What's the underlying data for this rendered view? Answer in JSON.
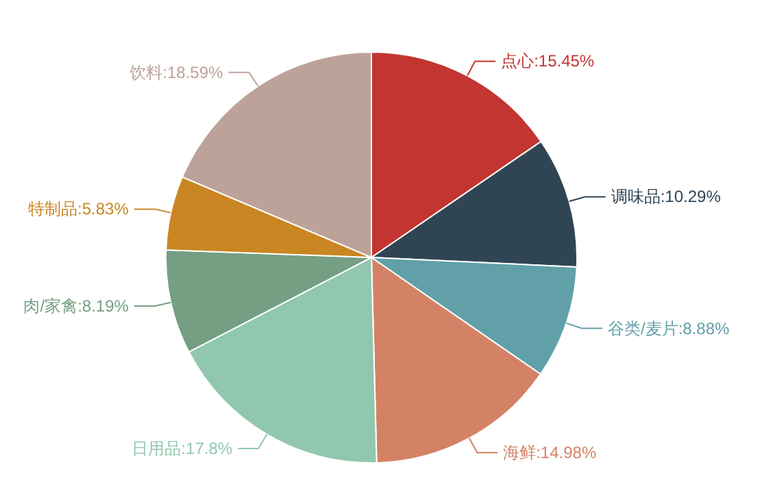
{
  "chart_data": {
    "type": "pie",
    "categories": [
      "点心",
      "调味品",
      "谷类/麦片",
      "海鲜",
      "日用品",
      "肉/家禽",
      "特制品",
      "饮料"
    ],
    "values": [
      15.45,
      10.29,
      8.88,
      14.98,
      17.8,
      8.19,
      5.83,
      18.59
    ],
    "colors": [
      "#c23531",
      "#2f4554",
      "#61a0a8",
      "#d48265",
      "#91c7ae",
      "#749f83",
      "#ca8622",
      "#bda29a"
    ],
    "value_labels": [
      ":15.45%",
      ":10.29%",
      ":8.88%",
      ":14.98%",
      ":17.8%",
      ":8.19%",
      ":5.83%",
      ":18.59%"
    ]
  }
}
